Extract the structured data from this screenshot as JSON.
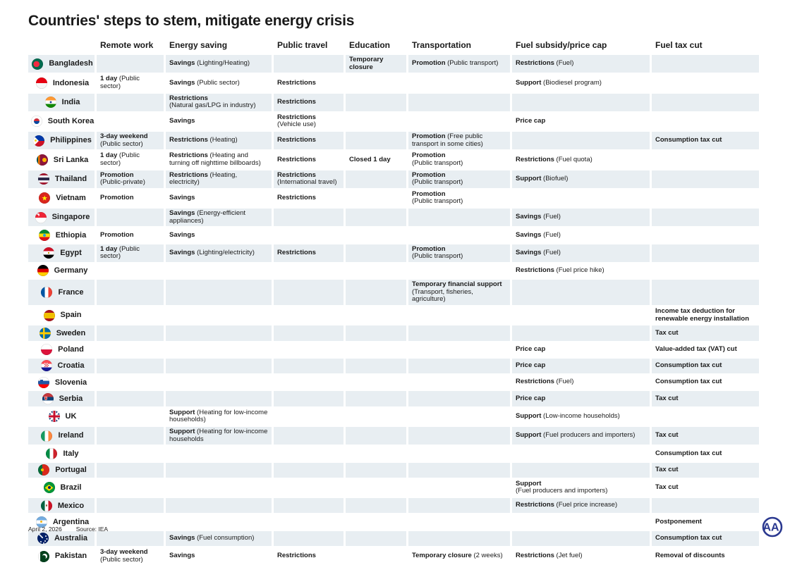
{
  "title": "Countries' steps to stem, mitigate energy crisis",
  "footer": {
    "date": "April 2, 2026",
    "source": "Source: IEA",
    "logo": "AA"
  },
  "colors": {
    "row_shade": "#e8eef2",
    "text": "#1a1a1a",
    "logo_blue": "#2b3990"
  },
  "chart_data": {
    "type": "table",
    "title": "Countries' steps to stem, mitigate energy crisis",
    "columns": [
      "Remote work",
      "Energy saving",
      "Public travel",
      "Education",
      "Transportation",
      "Fuel subsidy/price cap",
      "Fuel tax cut"
    ],
    "column_keys": [
      "remote-work",
      "energy-saving",
      "public-travel",
      "education",
      "transportation",
      "fuel-subsidy-price-cap",
      "fuel-tax-cut"
    ],
    "rows": [
      {
        "country": "Bangladesh",
        "flag": "bd",
        "cells": [
          null,
          {
            "k": "Savings",
            "d": "(Lighting/Heating)"
          },
          null,
          {
            "k": "Temporary closure"
          },
          {
            "k": "Promotion",
            "d": "(Public transport)"
          },
          {
            "k": "Restrictions",
            "d": "(Fuel)"
          },
          null
        ]
      },
      {
        "country": "Indonesia",
        "flag": "id",
        "cells": [
          {
            "k": "1 day",
            "d": "(Public sector)"
          },
          {
            "k": "Savings",
            "d": "(Public sector)"
          },
          {
            "k": "Restrictions"
          },
          null,
          null,
          {
            "k": "Support",
            "d": "(Biodiesel program)"
          },
          null
        ]
      },
      {
        "country": "India",
        "flag": "in",
        "cells": [
          null,
          {
            "k": "Restrictions",
            "d": "(Natural gas/LPG in industry)",
            "nl": true
          },
          {
            "k": "Restrictions"
          },
          null,
          null,
          null,
          null
        ]
      },
      {
        "country": "South Korea",
        "flag": "kr",
        "cells": [
          null,
          {
            "k": "Savings"
          },
          {
            "k": "Restrictions",
            "d": "(Vehicle use)",
            "nl": true
          },
          null,
          null,
          {
            "k": "Price cap"
          },
          null
        ]
      },
      {
        "country": "Philippines",
        "flag": "ph",
        "cells": [
          {
            "k": "3-day weekend",
            "d": "(Public sector)",
            "nl": true
          },
          {
            "k": "Restrictions",
            "d": "(Heating)"
          },
          {
            "k": "Restrictions"
          },
          null,
          {
            "k": "Promotion",
            "d": "(Free public transport in some cities)"
          },
          null,
          {
            "k": "Consumption tax cut"
          }
        ]
      },
      {
        "country": "Sri Lanka",
        "flag": "lk",
        "cells": [
          {
            "k": "1 day",
            "d": "(Public sector)"
          },
          {
            "k": "Restrictions",
            "d": "(Heating and turning off nighttime billboards)"
          },
          {
            "k": "Restrictions"
          },
          {
            "k": "Closed 1 day"
          },
          {
            "k": "Promotion",
            "d": "(Public transport)",
            "nl": true
          },
          {
            "k": "Restrictions",
            "d": "(Fuel quota)"
          },
          null
        ]
      },
      {
        "country": "Thailand",
        "flag": "th",
        "cells": [
          {
            "k": "Promotion",
            "d": "(Public-private)",
            "nl": true
          },
          {
            "k": "Restrictions",
            "d": "(Heating, electricity)"
          },
          {
            "k": "Restrictions",
            "d": "(International travel)",
            "nl": true
          },
          null,
          {
            "k": "Promotion",
            "d": "(Public transport)",
            "nl": true
          },
          {
            "k": "Support",
            "d": "(Biofuel)"
          },
          null
        ]
      },
      {
        "country": "Vietnam",
        "flag": "vn",
        "cells": [
          {
            "k": "Promotion"
          },
          {
            "k": "Savings"
          },
          {
            "k": "Restrictions"
          },
          null,
          {
            "k": "Promotion",
            "d": "(Public transport)",
            "nl": true
          },
          null,
          null
        ]
      },
      {
        "country": "Singapore",
        "flag": "sg",
        "cells": [
          null,
          {
            "k": "Savings",
            "d": "(Energy-efficient appliances)"
          },
          null,
          null,
          null,
          {
            "k": "Savings",
            "d": "(Fuel)"
          },
          null
        ]
      },
      {
        "country": "Ethiopia",
        "flag": "et",
        "cells": [
          {
            "k": "Promotion"
          },
          {
            "k": "Savings"
          },
          null,
          null,
          null,
          {
            "k": "Savings",
            "d": "(Fuel)"
          },
          null
        ]
      },
      {
        "country": "Egypt",
        "flag": "eg",
        "cells": [
          {
            "k": "1 day",
            "d": "(Public sector)"
          },
          {
            "k": "Savings",
            "d": "(Lighting/electricity)"
          },
          {
            "k": "Restrictions"
          },
          null,
          {
            "k": "Promotion",
            "d": "(Public transport)",
            "nl": true
          },
          {
            "k": "Savings",
            "d": "(Fuel)"
          },
          null
        ]
      },
      {
        "country": "Germany",
        "flag": "de",
        "cells": [
          null,
          null,
          null,
          null,
          null,
          {
            "k": "Restrictions",
            "d": "(Fuel price hike)"
          },
          null
        ]
      },
      {
        "country": "France",
        "flag": "fr",
        "cells": [
          null,
          null,
          null,
          null,
          {
            "k": "Temporary financial support",
            "d": "(Transport, fisheries, agriculture)"
          },
          null,
          null
        ]
      },
      {
        "country": "Spain",
        "flag": "es",
        "cells": [
          null,
          null,
          null,
          null,
          null,
          null,
          {
            "k": "Income tax deduction for renewable energy installation"
          }
        ]
      },
      {
        "country": "Sweden",
        "flag": "se",
        "cells": [
          null,
          null,
          null,
          null,
          null,
          null,
          {
            "k": "Tax cut"
          }
        ]
      },
      {
        "country": "Poland",
        "flag": "pl",
        "cells": [
          null,
          null,
          null,
          null,
          null,
          {
            "k": "Price cap"
          },
          {
            "k": "Value-added tax (VAT) cut"
          }
        ]
      },
      {
        "country": "Croatia",
        "flag": "hr",
        "cells": [
          null,
          null,
          null,
          null,
          null,
          {
            "k": "Price cap"
          },
          {
            "k": "Consumption tax cut"
          }
        ]
      },
      {
        "country": "Slovenia",
        "flag": "si",
        "cells": [
          null,
          null,
          null,
          null,
          null,
          {
            "k": "Restrictions",
            "d": "(Fuel)"
          },
          {
            "k": "Consumption tax cut"
          }
        ]
      },
      {
        "country": "Serbia",
        "flag": "rs",
        "cells": [
          null,
          null,
          null,
          null,
          null,
          {
            "k": "Price cap"
          },
          {
            "k": "Tax cut"
          }
        ]
      },
      {
        "country": "UK",
        "flag": "gb",
        "cells": [
          null,
          {
            "k": "Support",
            "d": "(Heating for low-income households)"
          },
          null,
          null,
          null,
          {
            "k": "Support",
            "d": "(Low-income households)"
          },
          null
        ]
      },
      {
        "country": "Ireland",
        "flag": "ie",
        "cells": [
          null,
          {
            "k": "Support",
            "d": "(Heating for low-income households"
          },
          null,
          null,
          null,
          {
            "k": "Support",
            "d": "(Fuel producers and importers)"
          },
          {
            "k": "Tax cut"
          }
        ]
      },
      {
        "country": "Italy",
        "flag": "it",
        "cells": [
          null,
          null,
          null,
          null,
          null,
          null,
          {
            "k": "Consumption tax cut"
          }
        ]
      },
      {
        "country": "Portugal",
        "flag": "pt",
        "cells": [
          null,
          null,
          null,
          null,
          null,
          null,
          {
            "k": "Tax cut"
          }
        ]
      },
      {
        "country": "Brazil",
        "flag": "br",
        "cells": [
          null,
          null,
          null,
          null,
          null,
          {
            "k": "Support",
            "d": "(Fuel producers and importers)",
            "nl": true
          },
          {
            "k": "Tax cut"
          }
        ]
      },
      {
        "country": "Mexico",
        "flag": "mx",
        "cells": [
          null,
          null,
          null,
          null,
          null,
          {
            "k": "Restrictions",
            "d": "(Fuel price increase)"
          },
          null
        ]
      },
      {
        "country": "Argentina",
        "flag": "ar",
        "cells": [
          null,
          null,
          null,
          null,
          null,
          null,
          {
            "k": "Postponement"
          }
        ]
      },
      {
        "country": "Australia",
        "flag": "au",
        "cells": [
          null,
          {
            "k": "Savings",
            "d": "(Fuel consumption)"
          },
          null,
          null,
          null,
          null,
          {
            "k": "Consumption tax cut"
          }
        ]
      },
      {
        "country": "Pakistan",
        "flag": "pk",
        "cells": [
          {
            "k": "3-day weekend",
            "d": "(Public sector)",
            "nl": true
          },
          {
            "k": "Savings"
          },
          {
            "k": "Restrictions"
          },
          null,
          {
            "k": "Temporary closure",
            "d": "(2 weeks)"
          },
          {
            "k": "Restrictions",
            "d": "(Jet fuel)"
          },
          {
            "k": "Removal of discounts"
          }
        ]
      }
    ]
  }
}
